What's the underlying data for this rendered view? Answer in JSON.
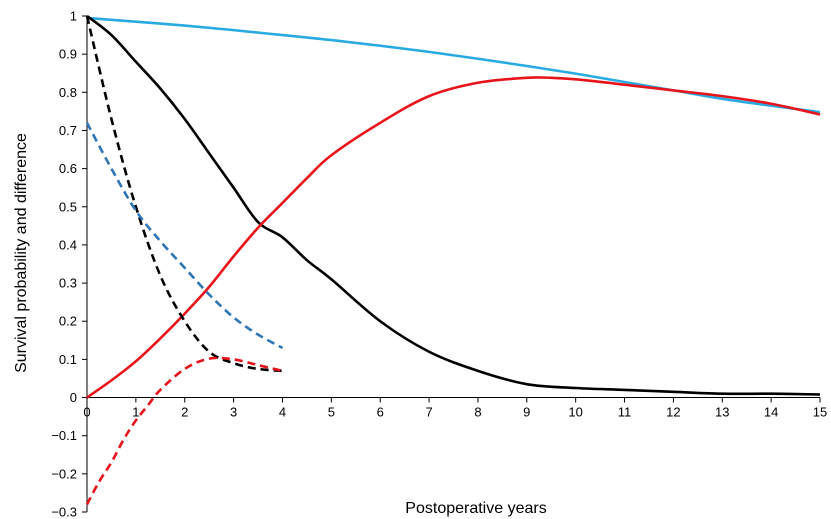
{
  "chart_data": {
    "type": "line",
    "title": "",
    "xlabel": "Postoperative years",
    "ylabel": "Survival probability and difference",
    "xlim": [
      0,
      15
    ],
    "ylim": [
      -0.3,
      1
    ],
    "x_ticks": [
      "0",
      "1",
      "2",
      "3",
      "4",
      "5",
      "6",
      "7",
      "8",
      "9",
      "10",
      "11",
      "12",
      "13",
      "14",
      "15"
    ],
    "y_ticks": [
      "−0.3",
      "−0.2",
      "−0.1",
      "0",
      "0.1",
      "0.2",
      "0.3",
      "0.4",
      "0.5",
      "0.6",
      "0.7",
      "0.8",
      "0.9",
      "1"
    ],
    "grid": false,
    "legend": "none",
    "series": [
      {
        "color": "#29abe2",
        "style": "solid",
        "x": [
          0,
          1,
          2,
          3,
          4,
          5,
          6,
          7,
          8,
          9,
          10,
          11,
          12,
          13,
          14,
          15
        ],
        "y": [
          0.995,
          0.985,
          0.975,
          0.963,
          0.95,
          0.937,
          0.922,
          0.906,
          0.888,
          0.869,
          0.849,
          0.827,
          0.805,
          0.783,
          0.765,
          0.748
        ]
      },
      {
        "color": "#000000",
        "style": "solid",
        "x": [
          0,
          0.5,
          1,
          1.5,
          2,
          2.5,
          3,
          3.5,
          4,
          4.5,
          5,
          6,
          7,
          8,
          9,
          10,
          11,
          12,
          13,
          14,
          15
        ],
        "y": [
          1.0,
          0.95,
          0.88,
          0.81,
          0.73,
          0.64,
          0.55,
          0.46,
          0.42,
          0.36,
          0.31,
          0.2,
          0.12,
          0.07,
          0.035,
          0.025,
          0.02,
          0.015,
          0.01,
          0.01,
          0.008
        ]
      },
      {
        "color": "#e8141b",
        "style": "solid",
        "x": [
          0,
          0.5,
          1,
          1.5,
          2,
          2.5,
          3,
          3.5,
          4,
          4.5,
          5,
          6,
          7,
          8,
          9,
          9.5,
          10,
          11,
          12,
          13,
          14,
          15
        ],
        "y": [
          0.0,
          0.045,
          0.095,
          0.155,
          0.22,
          0.29,
          0.37,
          0.445,
          0.51,
          0.575,
          0.635,
          0.72,
          0.79,
          0.825,
          0.838,
          0.838,
          0.834,
          0.82,
          0.805,
          0.79,
          0.77,
          0.742
        ]
      },
      {
        "color": "#000000",
        "style": "dashed",
        "x": [
          0,
          0.5,
          1,
          1.5,
          2,
          2.5,
          3,
          3.5,
          4
        ],
        "y": [
          1.0,
          0.73,
          0.5,
          0.32,
          0.2,
          0.12,
          0.09,
          0.075,
          0.07
        ]
      },
      {
        "color": "#2e75b6",
        "style": "dashed",
        "x": [
          0,
          0.5,
          1,
          1.5,
          2,
          2.5,
          3,
          3.5,
          4
        ],
        "y": [
          0.72,
          0.6,
          0.49,
          0.41,
          0.34,
          0.27,
          0.21,
          0.165,
          0.13
        ]
      },
      {
        "color": "#e8141b",
        "style": "dashed",
        "x": [
          0,
          0.25,
          0.5,
          0.75,
          1,
          1.25,
          1.5,
          2,
          2.5,
          3,
          3.5,
          4
        ],
        "y": [
          -0.28,
          -0.22,
          -0.17,
          -0.11,
          -0.06,
          -0.02,
          0.02,
          0.075,
          0.102,
          0.1,
          0.085,
          0.07
        ]
      }
    ]
  }
}
